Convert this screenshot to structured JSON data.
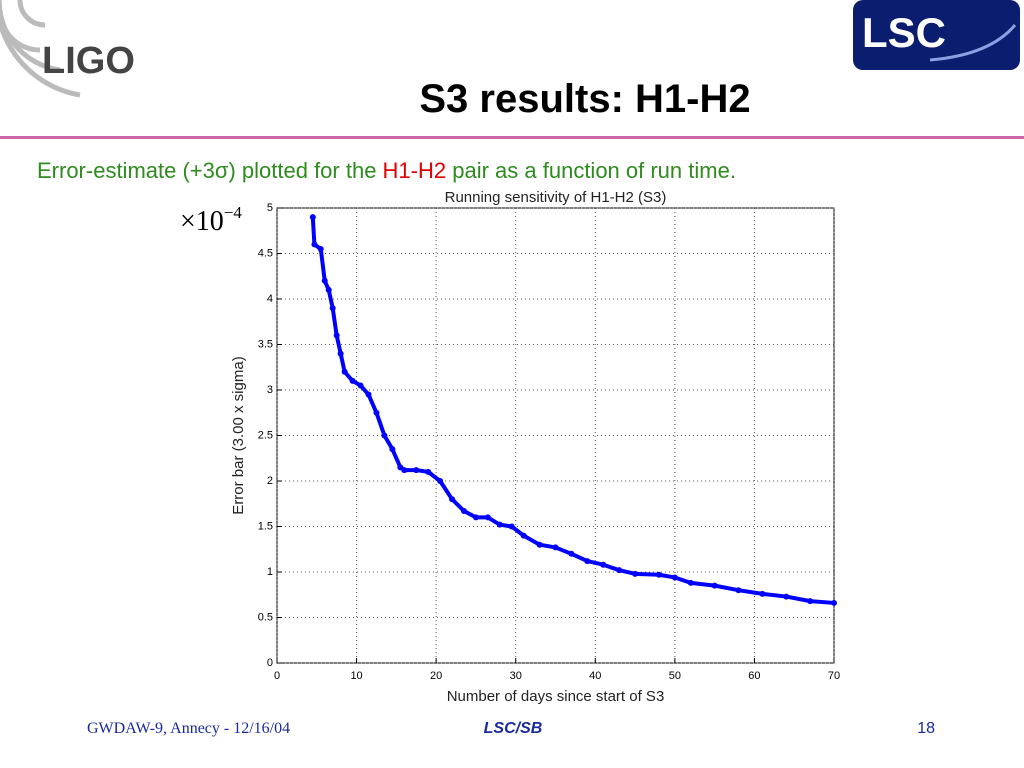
{
  "slide": {
    "logo_left": "LIGO",
    "logo_right": "LSC",
    "title": "S3 results: H1-H2",
    "subtitle": [
      "Error-estimate (+3σ) plotted for the ",
      "H1-H2",
      " pair as a function of run time."
    ],
    "footer": {
      "left": "GWDAW-9, Annecy - 12/16/04",
      "center": "LSC/SB",
      "page": "18"
    }
  },
  "chart_data": {
    "type": "line",
    "title": "Running sensitivity of H1-H2 (S3)",
    "x_label": "Number of days since start of S3",
    "y_label": "Error bar (3.00 x sigma)",
    "y_multiplier": {
      "base": "×10",
      "exponent": "−4"
    },
    "x": [
      4.5,
      4.7,
      5.5,
      6.0,
      6.5,
      7.0,
      7.5,
      8.0,
      8.5,
      9.5,
      10.5,
      11.5,
      12.5,
      13.5,
      14.5,
      15.5,
      16,
      17.5,
      19,
      20.5,
      22,
      23.5,
      25,
      26.5,
      28,
      29.5,
      31,
      33,
      35,
      37,
      39,
      41,
      43,
      45,
      48,
      50,
      52,
      55,
      58,
      61,
      64,
      67,
      70
    ],
    "values": [
      4.9,
      4.6,
      4.55,
      4.2,
      4.1,
      3.9,
      3.6,
      3.4,
      3.2,
      3.1,
      3.05,
      2.95,
      2.75,
      2.5,
      2.35,
      2.15,
      2.12,
      2.12,
      2.1,
      2.0,
      1.8,
      1.67,
      1.6,
      1.6,
      1.52,
      1.5,
      1.4,
      1.3,
      1.27,
      1.2,
      1.12,
      1.08,
      1.02,
      0.98,
      0.97,
      0.94,
      0.88,
      0.85,
      0.8,
      0.76,
      0.73,
      0.68,
      0.66
    ],
    "color": "#0000ff",
    "grid": true,
    "xlim": [
      0,
      70
    ],
    "xticks": [
      0,
      10,
      20,
      30,
      40,
      50,
      60,
      70
    ],
    "ylim": [
      0,
      5
    ],
    "yticks": [
      0,
      0.5,
      1,
      1.5,
      2,
      2.5,
      3,
      3.5,
      4,
      4.5,
      5
    ]
  }
}
